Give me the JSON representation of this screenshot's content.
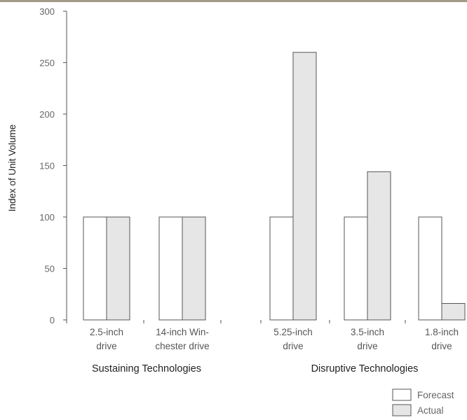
{
  "chart_data": {
    "type": "bar",
    "title": "",
    "xlabel": "",
    "ylabel": "Index of Unit Volume",
    "ylim": [
      0,
      300
    ],
    "yticks": [
      0,
      50,
      100,
      150,
      200,
      250,
      300
    ],
    "categories": [
      {
        "line1": "2.5-inch",
        "line2": "drive"
      },
      {
        "line1": "14-inch Win-",
        "line2": "chester drive"
      },
      {
        "line1": "5.25-inch",
        "line2": "drive"
      },
      {
        "line1": "3.5-inch",
        "line2": "drive"
      },
      {
        "line1": "1.8-inch",
        "line2": "drive"
      }
    ],
    "groups": [
      {
        "label": "Sustaining Technologies",
        "categories": [
          0,
          1
        ]
      },
      {
        "label": "Disruptive Technologies",
        "categories": [
          2,
          3,
          4
        ]
      }
    ],
    "series": [
      {
        "name": "Forecast",
        "values": [
          100,
          100,
          100,
          100,
          100
        ],
        "color": "#ffffff"
      },
      {
        "name": "Actual",
        "values": [
          100,
          100,
          260,
          144,
          16
        ],
        "color": "#e6e6e6"
      }
    ],
    "grid": false,
    "legend_position": "bottom-right"
  }
}
